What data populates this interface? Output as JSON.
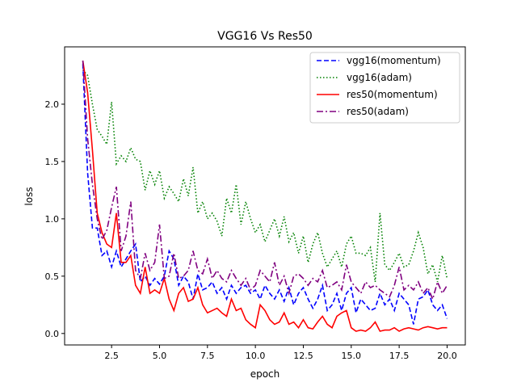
{
  "chart_data": {
    "type": "line",
    "title": "VGG16 Vs Res50",
    "xlabel": "epoch",
    "ylabel": "loss",
    "xlim": [
      0.05,
      20.95
    ],
    "ylim": [
      -0.1,
      2.5
    ],
    "xticks": [
      2.5,
      5.0,
      7.5,
      10.0,
      12.5,
      15.0,
      17.5,
      20.0
    ],
    "xtick_labels": [
      "2.5",
      "5.0",
      "7.5",
      "10.0",
      "12.5",
      "15.0",
      "17.5",
      "20.0"
    ],
    "yticks": [
      0.0,
      0.5,
      1.0,
      1.5,
      2.0
    ],
    "ytick_labels": [
      "0.0",
      "0.5",
      "1.0",
      "1.5",
      "2.0"
    ],
    "grid": false,
    "legend_position": "top-right",
    "x_start": 1,
    "x_step": 0.25,
    "series": [
      {
        "name": "vgg16(momentum)",
        "color": "#0000ff",
        "dash": "6,3",
        "values": [
          2.35,
          1.4,
          0.92,
          0.92,
          0.68,
          0.72,
          0.58,
          0.72,
          0.58,
          0.65,
          0.72,
          0.78,
          0.45,
          0.5,
          0.42,
          0.48,
          0.43,
          0.5,
          0.72,
          0.65,
          0.42,
          0.5,
          0.45,
          0.3,
          0.52,
          0.38,
          0.4,
          0.45,
          0.35,
          0.4,
          0.3,
          0.42,
          0.35,
          0.4,
          0.42,
          0.35,
          0.38,
          0.3,
          0.42,
          0.35,
          0.3,
          0.38,
          0.28,
          0.4,
          0.25,
          0.35,
          0.4,
          0.3,
          0.22,
          0.3,
          0.42,
          0.2,
          0.25,
          0.35,
          0.2,
          0.35,
          0.4,
          0.18,
          0.3,
          0.25,
          0.2,
          0.22,
          0.35,
          0.25,
          0.3,
          0.2,
          0.35,
          0.3,
          0.25,
          0.08,
          0.3,
          0.32,
          0.38,
          0.25,
          0.2,
          0.25,
          0.13
        ]
      },
      {
        "name": "vgg16(adam)",
        "color": "#008000",
        "dash": "1.5,2.5",
        "values": [
          2.3,
          2.25,
          2.0,
          1.78,
          1.72,
          1.65,
          2.02,
          1.48,
          1.55,
          1.5,
          1.62,
          1.52,
          1.5,
          1.25,
          1.42,
          1.3,
          1.42,
          1.18,
          1.28,
          1.22,
          1.15,
          1.35,
          1.2,
          1.45,
          1.05,
          1.15,
          1.0,
          1.05,
          0.98,
          0.85,
          1.18,
          1.05,
          1.3,
          0.95,
          1.15,
          1.0,
          0.88,
          0.95,
          0.8,
          0.9,
          1.0,
          0.85,
          1.02,
          0.8,
          0.88,
          0.7,
          0.85,
          0.62,
          0.78,
          0.88,
          0.7,
          0.58,
          0.65,
          0.72,
          0.58,
          0.78,
          0.85,
          0.7,
          0.7,
          0.68,
          0.75,
          0.45,
          1.05,
          0.6,
          0.55,
          0.62,
          0.7,
          0.58,
          0.6,
          0.72,
          0.88,
          0.75,
          0.52,
          0.6,
          0.45,
          0.68,
          0.48
        ]
      },
      {
        "name": "res50(momentum)",
        "color": "#ff0000",
        "dash": "",
        "values": [
          2.38,
          2.1,
          1.6,
          1.05,
          0.88,
          0.78,
          0.75,
          1.05,
          0.62,
          0.62,
          0.68,
          0.42,
          0.35,
          0.58,
          0.35,
          0.38,
          0.35,
          0.48,
          0.3,
          0.2,
          0.35,
          0.4,
          0.28,
          0.3,
          0.4,
          0.25,
          0.18,
          0.2,
          0.22,
          0.18,
          0.15,
          0.3,
          0.2,
          0.22,
          0.12,
          0.08,
          0.05,
          0.25,
          0.2,
          0.12,
          0.08,
          0.1,
          0.18,
          0.08,
          0.1,
          0.05,
          0.12,
          0.05,
          0.04,
          0.1,
          0.15,
          0.08,
          0.05,
          0.15,
          0.18,
          0.2,
          0.05,
          0.02,
          0.03,
          0.02,
          0.05,
          0.1,
          0.02,
          0.03,
          0.03,
          0.05,
          0.02,
          0.04,
          0.05,
          0.04,
          0.03,
          0.05,
          0.06,
          0.05,
          0.04,
          0.05,
          0.05
        ]
      },
      {
        "name": "res50(adam)",
        "color": "#800080",
        "dash": "8,3,2,3",
        "values": [
          2.38,
          1.7,
          1.3,
          1.0,
          0.82,
          0.9,
          1.1,
          1.28,
          0.72,
          0.85,
          1.15,
          0.55,
          0.48,
          0.7,
          0.55,
          0.62,
          0.95,
          0.48,
          0.5,
          0.7,
          0.48,
          0.5,
          0.55,
          0.72,
          0.55,
          0.52,
          0.65,
          0.48,
          0.55,
          0.48,
          0.45,
          0.55,
          0.48,
          0.42,
          0.48,
          0.38,
          0.42,
          0.55,
          0.5,
          0.45,
          0.62,
          0.42,
          0.5,
          0.35,
          0.5,
          0.52,
          0.48,
          0.42,
          0.48,
          0.45,
          0.55,
          0.4,
          0.42,
          0.45,
          0.38,
          0.6,
          0.45,
          0.4,
          0.35,
          0.45,
          0.4,
          0.42,
          0.38,
          0.35,
          0.32,
          0.42,
          0.58,
          0.38,
          0.42,
          0.38,
          0.45,
          0.35,
          0.4,
          0.3,
          0.45,
          0.35,
          0.42
        ]
      }
    ]
  }
}
